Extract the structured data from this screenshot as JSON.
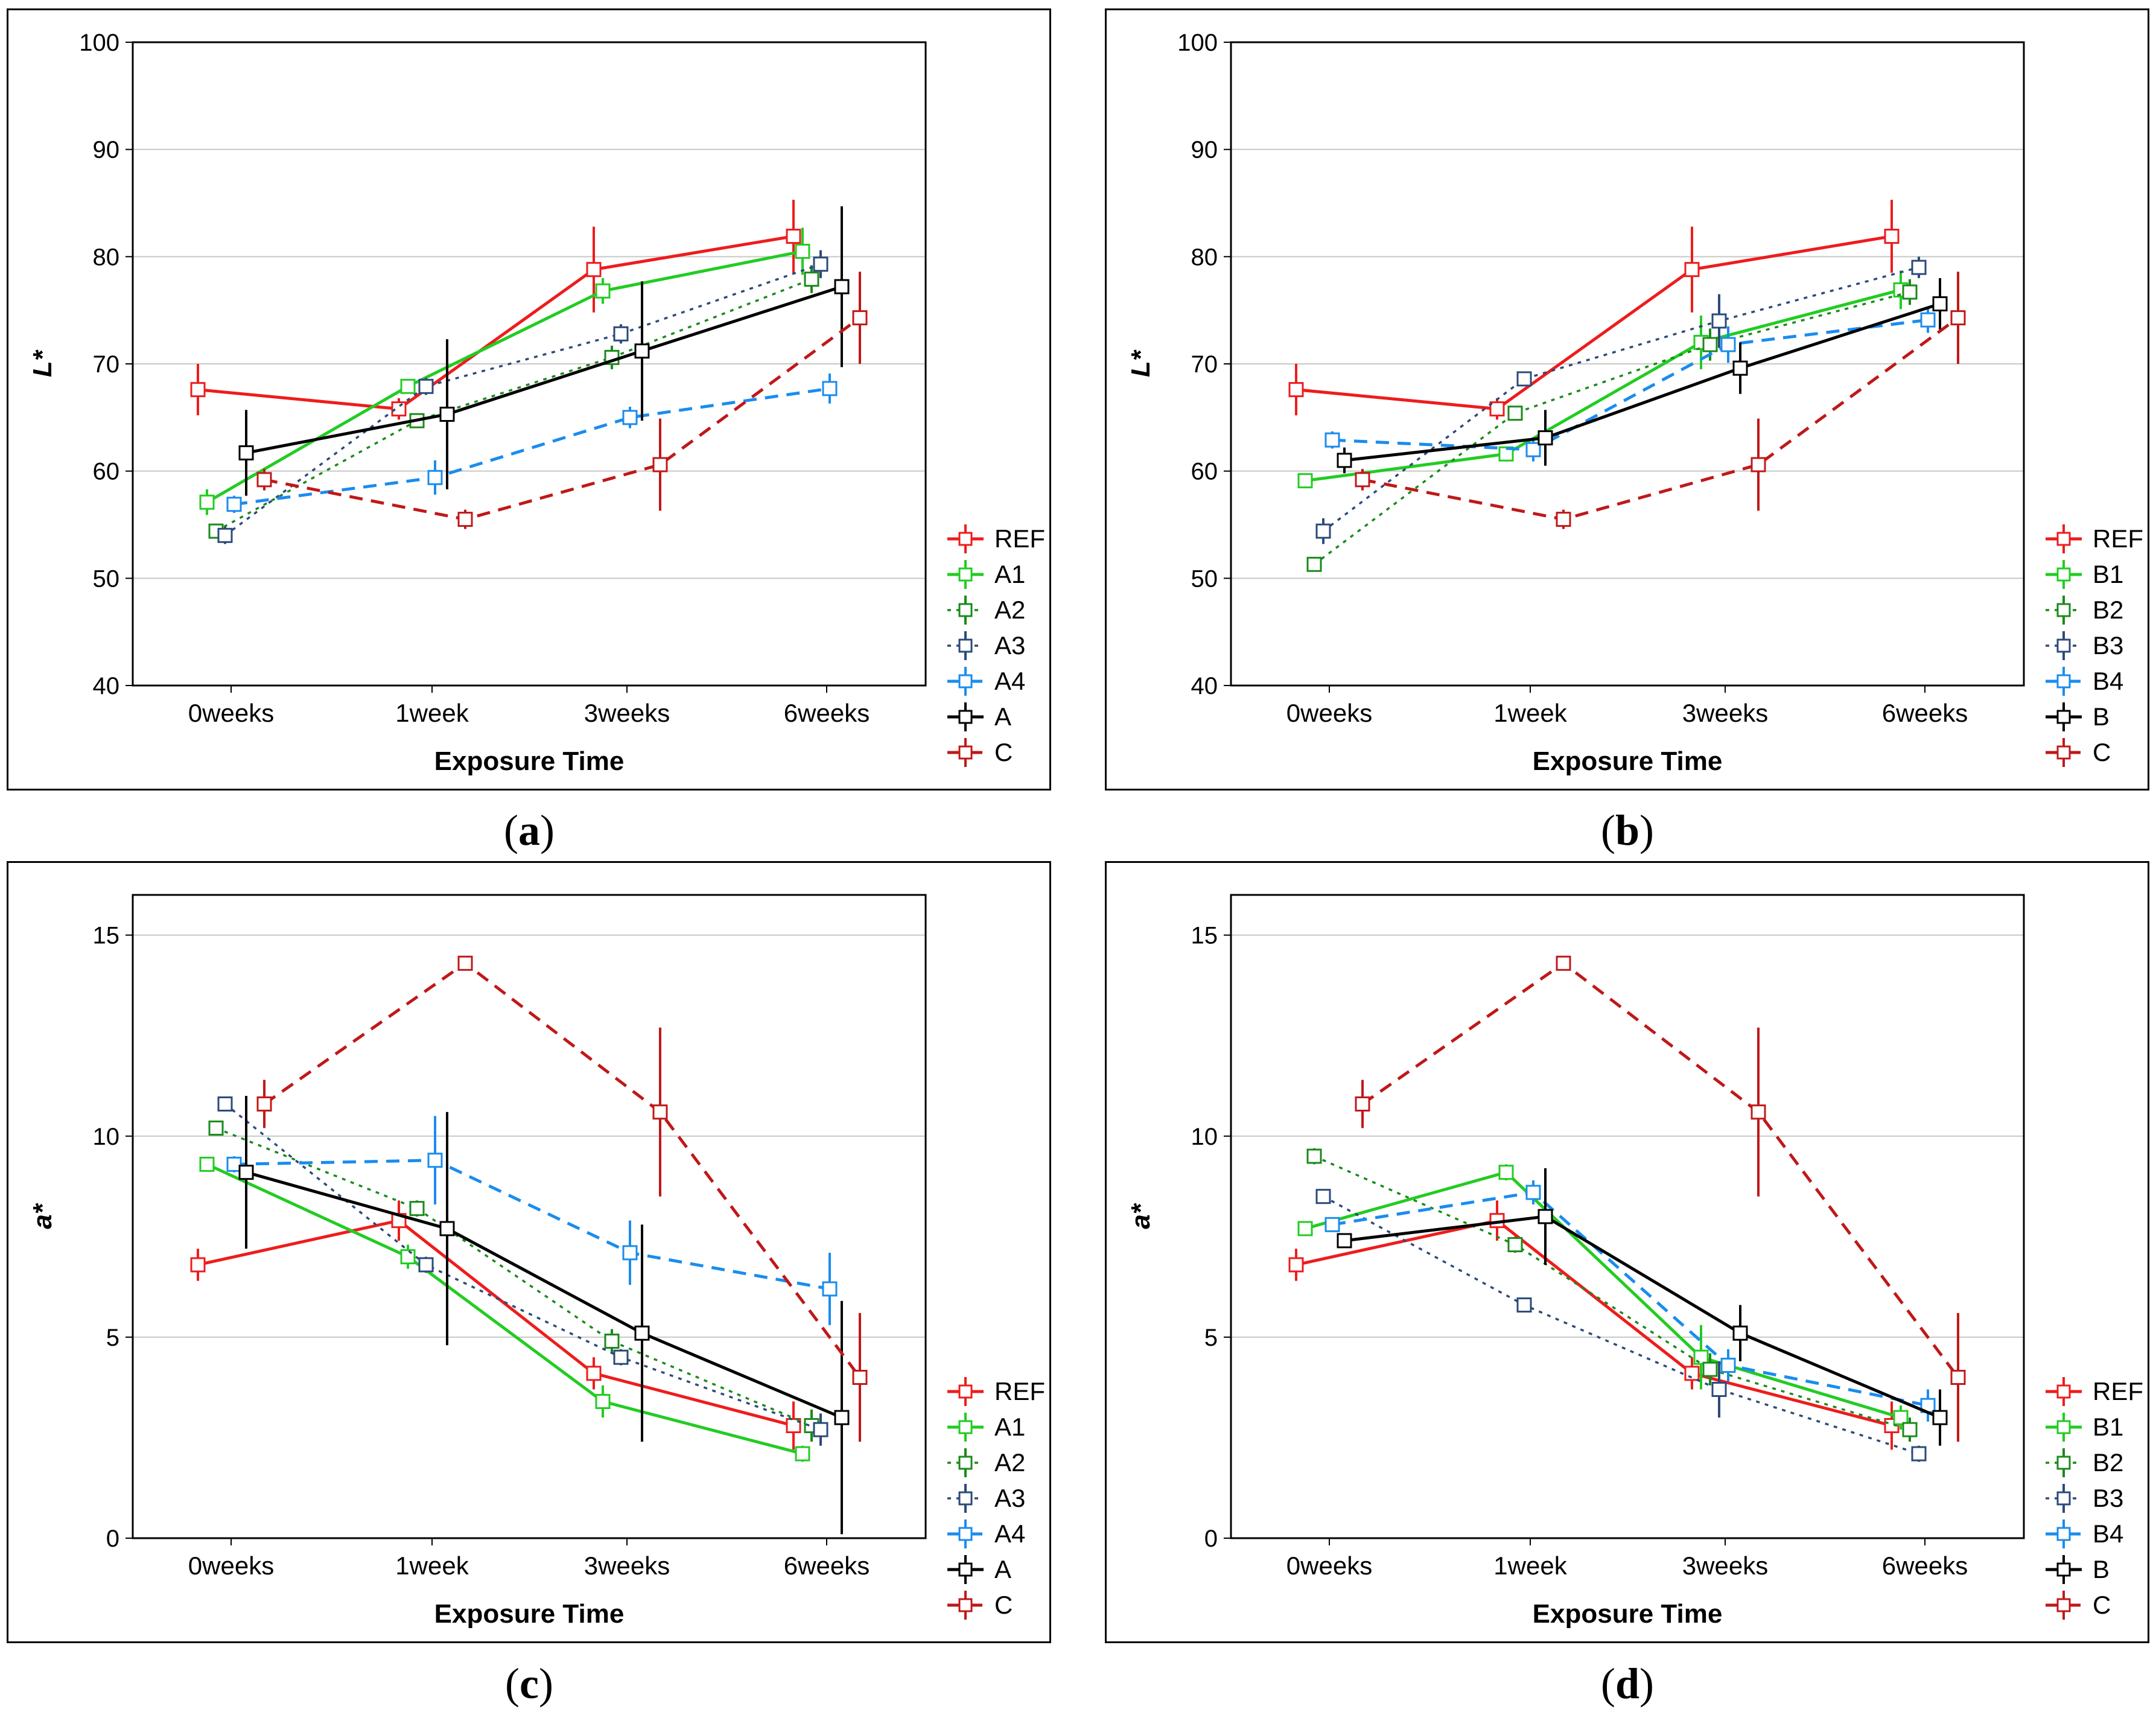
{
  "chart_data": [
    {
      "type": "line",
      "panel_label": "a",
      "title": "",
      "xlabel": "Exposure Time",
      "ylabel": "L*",
      "categories": [
        "0weeks",
        "1week",
        "3weeks",
        "6weeks"
      ],
      "ylim": [
        40,
        100
      ],
      "yticks": [
        40,
        50,
        60,
        70,
        80,
        90,
        100
      ],
      "grid": true,
      "legend_position": "right",
      "series": [
        {
          "name": "REF",
          "color": "#ee1c1c",
          "dash": "solid",
          "width": "bold",
          "values": [
            67.6,
            65.8,
            78.8,
            81.9
          ],
          "errors": [
            2.4,
            1.0,
            4.0,
            3.4
          ]
        },
        {
          "name": "A1",
          "color": "#22cc22",
          "dash": "solid",
          "width": "bold",
          "values": [
            57.1,
            67.9,
            76.8,
            80.5
          ],
          "errors": [
            1.2,
            0.6,
            1.2,
            2.2
          ]
        },
        {
          "name": "A2",
          "color": "#1a8a1a",
          "dash": "dotted",
          "width": "thin",
          "values": [
            54.4,
            64.7,
            70.6,
            77.9
          ],
          "errors": [
            0.5,
            0.6,
            1.1,
            1.3
          ]
        },
        {
          "name": "A3",
          "color": "#2c4a7a",
          "dash": "dotted",
          "width": "thin",
          "values": [
            54.0,
            67.9,
            72.8,
            79.3
          ],
          "errors": [
            0.8,
            0.8,
            0.9,
            1.3
          ]
        },
        {
          "name": "A4",
          "color": "#1a8cee",
          "dash": "dashed",
          "width": "bold",
          "values": [
            56.9,
            59.4,
            65.0,
            67.7
          ],
          "errors": [
            0.8,
            1.6,
            1.0,
            1.4
          ]
        },
        {
          "name": "A",
          "color": "#000000",
          "dash": "solid",
          "width": "bold",
          "values": [
            61.7,
            65.3,
            71.2,
            77.2
          ],
          "errors": [
            4.0,
            7.0,
            6.5,
            7.5
          ]
        },
        {
          "name": "C",
          "color": "#c01818",
          "dash": "dashed",
          "width": "bold",
          "values": [
            59.2,
            55.5,
            60.6,
            74.3
          ],
          "errors": [
            1.0,
            0.9,
            4.3,
            4.3
          ]
        }
      ]
    },
    {
      "type": "line",
      "panel_label": "b",
      "title": "",
      "xlabel": "Exposure Time",
      "ylabel": "L*",
      "categories": [
        "0weeks",
        "1week",
        "3weeks",
        "6weeks"
      ],
      "ylim": [
        40,
        100
      ],
      "yticks": [
        40,
        50,
        60,
        70,
        80,
        90,
        100
      ],
      "grid": true,
      "legend_position": "right",
      "series": [
        {
          "name": "REF",
          "color": "#ee1c1c",
          "dash": "solid",
          "width": "bold",
          "values": [
            67.6,
            65.8,
            78.8,
            81.9
          ],
          "errors": [
            2.4,
            1.0,
            4.0,
            3.4
          ]
        },
        {
          "name": "B1",
          "color": "#22cc22",
          "dash": "solid",
          "width": "bold",
          "values": [
            59.1,
            61.6,
            72.0,
            76.9
          ],
          "errors": [
            0.5,
            0.6,
            2.5,
            1.8
          ]
        },
        {
          "name": "B2",
          "color": "#1a8a1a",
          "dash": "dotted",
          "width": "thin",
          "values": [
            51.3,
            65.4,
            71.8,
            76.7
          ],
          "errors": [
            0.6,
            0.6,
            1.5,
            1.2
          ]
        },
        {
          "name": "B3",
          "color": "#2c4a7a",
          "dash": "dotted",
          "width": "thin",
          "values": [
            54.4,
            68.6,
            74.0,
            79.0
          ],
          "errors": [
            1.2,
            0.5,
            2.5,
            1.0
          ]
        },
        {
          "name": "B4",
          "color": "#1a8cee",
          "dash": "dashed",
          "width": "bold",
          "values": [
            62.9,
            62.0,
            71.8,
            74.1
          ],
          "errors": [
            0.8,
            1.1,
            1.7,
            1.2
          ]
        },
        {
          "name": "B",
          "color": "#000000",
          "dash": "solid",
          "width": "bold",
          "values": [
            61.0,
            63.1,
            69.6,
            75.6
          ],
          "errors": [
            1.2,
            2.6,
            2.4,
            2.4
          ]
        },
        {
          "name": "C",
          "color": "#c01818",
          "dash": "dashed",
          "width": "bold",
          "values": [
            59.2,
            55.5,
            60.6,
            74.3
          ],
          "errors": [
            1.0,
            0.9,
            4.3,
            4.3
          ]
        }
      ]
    },
    {
      "type": "line",
      "panel_label": "c",
      "title": "",
      "xlabel": "Exposure Time",
      "ylabel": "a*",
      "categories": [
        "0weeks",
        "1week",
        "3weeks",
        "6weeks"
      ],
      "ylim": [
        0,
        16
      ],
      "yticks": [
        0,
        5,
        10,
        15
      ],
      "grid": true,
      "legend_position": "right",
      "series": [
        {
          "name": "REF",
          "color": "#ee1c1c",
          "dash": "solid",
          "width": "bold",
          "values": [
            6.8,
            7.9,
            4.1,
            2.8
          ],
          "errors": [
            0.4,
            0.5,
            0.4,
            0.6
          ]
        },
        {
          "name": "A1",
          "color": "#22cc22",
          "dash": "solid",
          "width": "bold",
          "values": [
            9.3,
            7.0,
            3.4,
            2.1
          ],
          "errors": [
            0.1,
            0.3,
            0.4,
            0.2
          ]
        },
        {
          "name": "A2",
          "color": "#1a8a1a",
          "dash": "dotted",
          "width": "thin",
          "values": [
            10.2,
            8.2,
            4.9,
            2.8
          ],
          "errors": [
            0.1,
            0.2,
            0.3,
            0.4
          ]
        },
        {
          "name": "A3",
          "color": "#2c4a7a",
          "dash": "dotted",
          "width": "thin",
          "values": [
            10.8,
            6.8,
            4.5,
            2.7
          ],
          "errors": [
            0.1,
            0.2,
            0.2,
            0.4
          ]
        },
        {
          "name": "A4",
          "color": "#1a8cee",
          "dash": "dashed",
          "width": "bold",
          "values": [
            9.3,
            9.4,
            7.1,
            6.2
          ],
          "errors": [
            0.2,
            1.1,
            0.8,
            0.9
          ]
        },
        {
          "name": "A",
          "color": "#000000",
          "dash": "solid",
          "width": "bold",
          "values": [
            9.1,
            7.7,
            5.1,
            3.0
          ],
          "errors": [
            1.9,
            2.9,
            2.7,
            2.9
          ]
        },
        {
          "name": "C",
          "color": "#c01818",
          "dash": "dashed",
          "width": "bold",
          "values": [
            10.8,
            14.3,
            10.6,
            4.0
          ],
          "errors": [
            0.6,
            0.1,
            2.1,
            1.6
          ]
        }
      ]
    },
    {
      "type": "line",
      "panel_label": "d",
      "title": "",
      "xlabel": "Exposure Time",
      "ylabel": "a*",
      "categories": [
        "0weeks",
        "1week",
        "3weeks",
        "6weeks"
      ],
      "ylim": [
        0,
        16
      ],
      "yticks": [
        0,
        5,
        10,
        15
      ],
      "grid": true,
      "legend_position": "right",
      "series": [
        {
          "name": "REF",
          "color": "#ee1c1c",
          "dash": "solid",
          "width": "bold",
          "values": [
            6.8,
            7.9,
            4.1,
            2.8
          ],
          "errors": [
            0.4,
            0.5,
            0.4,
            0.6
          ]
        },
        {
          "name": "B1",
          "color": "#22cc22",
          "dash": "solid",
          "width": "bold",
          "values": [
            7.7,
            9.1,
            4.5,
            3.0
          ],
          "errors": [
            0.1,
            0.2,
            0.8,
            0.3
          ]
        },
        {
          "name": "B2",
          "color": "#1a8a1a",
          "dash": "dotted",
          "width": "thin",
          "values": [
            9.5,
            7.3,
            4.2,
            2.7
          ],
          "errors": [
            0.2,
            0.2,
            0.4,
            0.3
          ]
        },
        {
          "name": "B3",
          "color": "#2c4a7a",
          "dash": "dotted",
          "width": "thin",
          "values": [
            8.5,
            5.8,
            3.7,
            2.1
          ],
          "errors": [
            0.1,
            0.1,
            0.7,
            0.2
          ]
        },
        {
          "name": "B4",
          "color": "#1a8cee",
          "dash": "dashed",
          "width": "bold",
          "values": [
            7.8,
            8.6,
            4.3,
            3.3
          ],
          "errors": [
            0.1,
            0.3,
            0.4,
            0.4
          ]
        },
        {
          "name": "B",
          "color": "#000000",
          "dash": "solid",
          "width": "bold",
          "values": [
            7.4,
            8.0,
            5.1,
            3.0
          ],
          "errors": [
            0.1,
            1.2,
            0.7,
            0.7
          ]
        },
        {
          "name": "C",
          "color": "#c01818",
          "dash": "dashed",
          "width": "bold",
          "values": [
            10.8,
            14.3,
            10.6,
            4.0
          ],
          "errors": [
            0.6,
            0.1,
            2.1,
            1.6
          ]
        }
      ]
    }
  ]
}
